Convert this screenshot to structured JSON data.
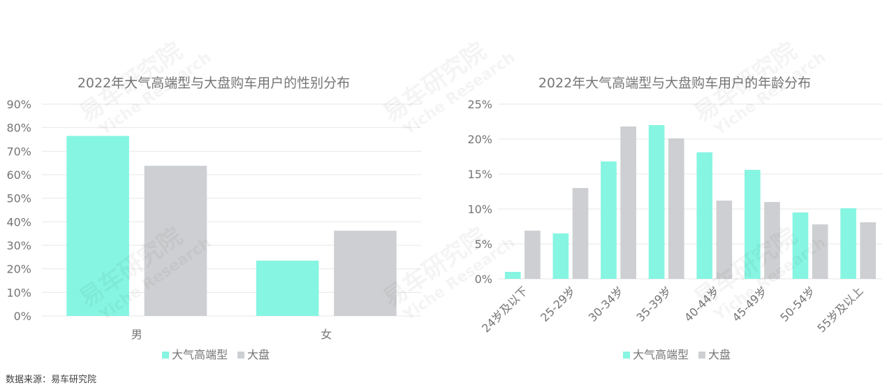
{
  "source": "数据来源：易车研究院",
  "watermark": {
    "cn": "易车研究院",
    "en": "Yiche Research"
  },
  "colors": {
    "series1": "#86f5e2",
    "series2": "#cdcfd2",
    "grid": "#e7e7e7",
    "text": "#757575"
  },
  "chart_data": [
    {
      "type": "bar",
      "title": "2022年大气高端型与大盘购车用户的性别分布",
      "categories": [
        "男",
        "女"
      ],
      "series": [
        {
          "name": "大气高端型",
          "values": [
            76.5,
            23.5
          ]
        },
        {
          "name": "大盘",
          "values": [
            63.8,
            36.2
          ]
        }
      ],
      "ylim": [
        0,
        90
      ],
      "yticks": [
        "0%",
        "10%",
        "20%",
        "30%",
        "40%",
        "50%",
        "60%",
        "70%",
        "80%",
        "90%"
      ],
      "legend_position": "bottom",
      "grid": true
    },
    {
      "type": "bar",
      "title": "2022年大气高端型与大盘购车用户的年龄分布",
      "categories": [
        "24岁及以下",
        "25-29岁",
        "30-34岁",
        "35-39岁",
        "40-44岁",
        "45-49岁",
        "50-54岁",
        "55岁及以上"
      ],
      "series": [
        {
          "name": "大气高端型",
          "values": [
            1.0,
            6.5,
            16.8,
            22.0,
            18.1,
            15.6,
            9.5,
            10.1
          ]
        },
        {
          "name": "大盘",
          "values": [
            6.9,
            13.0,
            21.8,
            20.1,
            11.2,
            11.0,
            7.8,
            8.1
          ]
        }
      ],
      "ylim": [
        0,
        25
      ],
      "yticks": [
        "0%",
        "5%",
        "10%",
        "15%",
        "20%",
        "25%"
      ],
      "legend_position": "bottom",
      "grid": true
    }
  ]
}
